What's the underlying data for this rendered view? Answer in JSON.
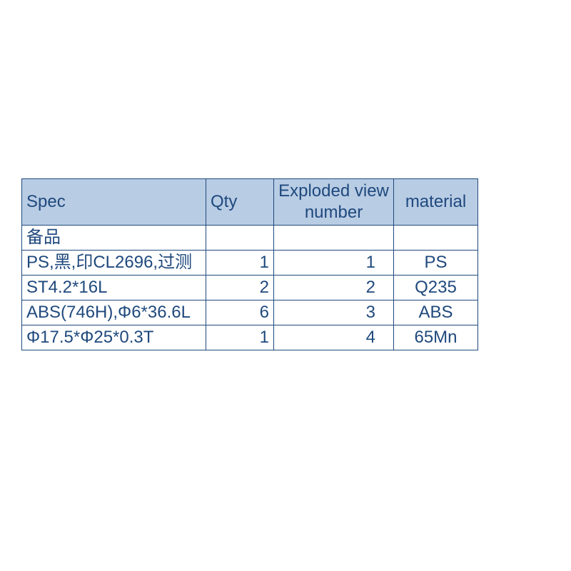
{
  "table": {
    "header_bg": "#b8cce4",
    "border_color": "#1f497d",
    "text_color": "#1f497d",
    "columns": [
      {
        "label": "Spec",
        "class": "col-spec"
      },
      {
        "label": "Qty",
        "class": "col-qty"
      },
      {
        "label": "Exploded view number",
        "class": "col-exp"
      },
      {
        "label": "material",
        "class": "col-mat"
      }
    ],
    "rows": [
      {
        "spec": "备品",
        "qty": "",
        "exp": "",
        "mat": ""
      },
      {
        "spec": "PS,黑,印CL2696,过测",
        "qty": "1",
        "exp": "1",
        "mat": "PS"
      },
      {
        "spec": "ST4.2*16L",
        "qty": "2",
        "exp": "2",
        "mat": "Q235"
      },
      {
        "spec": "ABS(746H),Φ6*36.6L",
        "qty": "6",
        "exp": "3",
        "mat": "ABS"
      },
      {
        "spec": "Φ17.5*Φ25*0.3T",
        "qty": "1",
        "exp": "4",
        "mat": "65Mn"
      }
    ]
  }
}
